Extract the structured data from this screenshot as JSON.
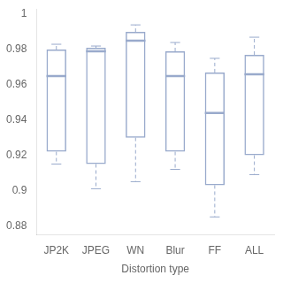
{
  "chart_data": {
    "type": "box",
    "xlabel": "Distortion type",
    "categories": [
      "JP2K",
      "JPEG",
      "WN",
      "Blur",
      "FF",
      "ALL"
    ],
    "values": [
      {
        "whislo": 0.915,
        "q1": 0.922,
        "med": 0.965,
        "q3": 0.98,
        "whishi": 0.983
      },
      {
        "whislo": 0.901,
        "q1": 0.915,
        "med": 0.979,
        "q3": 0.981,
        "whishi": 0.982
      },
      {
        "whislo": 0.905,
        "q1": 0.93,
        "med": 0.985,
        "q3": 0.99,
        "whishi": 0.994
      },
      {
        "whislo": 0.912,
        "q1": 0.922,
        "med": 0.965,
        "q3": 0.979,
        "whishi": 0.984
      },
      {
        "whislo": 0.885,
        "q1": 0.903,
        "med": 0.944,
        "q3": 0.967,
        "whishi": 0.975
      },
      {
        "whislo": 0.909,
        "q1": 0.92,
        "med": 0.966,
        "q3": 0.977,
        "whishi": 0.987
      }
    ],
    "color": "#99aacc",
    "ylim": [
      0.875,
      1.003
    ],
    "yticks": [
      0.88,
      0.9,
      0.92,
      0.94,
      0.96,
      0.98,
      1
    ],
    "grid": false
  }
}
